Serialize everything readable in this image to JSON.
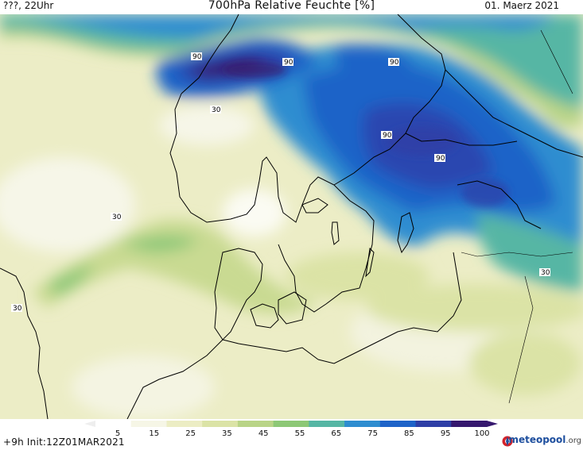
{
  "header": {
    "left": "???, 22Uhr",
    "title": "700hPa Relative Feuchte [%]",
    "date": "01. Maerz 2021"
  },
  "footer": {
    "init": "+9h  Init:12Z01MAR2021",
    "brand": "meteopool",
    "brand_suffix": ".org"
  },
  "colorbar": {
    "labels": [
      "5",
      "15",
      "25",
      "35",
      "45",
      "55",
      "65",
      "75",
      "85",
      "95",
      "100"
    ],
    "colors": [
      "#ffffff",
      "#f6f6e6",
      "#ecedc4",
      "#dbe3a6",
      "#b9d487",
      "#8dc876",
      "#56b6a4",
      "#2e8dd0",
      "#1e63c8",
      "#2e3fa6",
      "#36186e"
    ]
  },
  "contour_labels": {
    "label_90": "90",
    "label_30": "30"
  }
}
